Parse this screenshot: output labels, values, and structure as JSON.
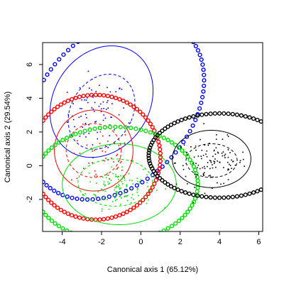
{
  "chart_data": {
    "type": "scatter",
    "title": "",
    "xlabel": "Canonical axis 1 (65.12%)",
    "ylabel": "Canonical axis 2 (29.54%)",
    "xlim": [
      -5,
      6.2
    ],
    "ylim": [
      -3.9,
      7.3
    ],
    "x_ticks": [
      -4,
      -2,
      0,
      2,
      4,
      6
    ],
    "y_ticks": [
      -2,
      0,
      2,
      4,
      6
    ],
    "x_tick_labels": [
      "-4",
      "-2",
      "0",
      "2",
      "4",
      "6"
    ],
    "y_tick_labels": [
      "-2",
      "0",
      "2",
      "4",
      "6"
    ],
    "grid": false,
    "legend": "none",
    "groups": [
      {
        "color": "#0000FF",
        "centroid": [
          -2.2,
          3.1
        ],
        "spread": [
          0.75,
          1.0
        ],
        "n_points": 80,
        "ellipses": [
          {
            "style": "dashed",
            "cx": -2.0,
            "cy": 3.2,
            "rx": 1.6,
            "ry": 2.3,
            "angle": -20
          },
          {
            "style": "solid",
            "cx": -2.0,
            "cy": 3.8,
            "rx": 2.5,
            "ry": 3.4,
            "angle": -20
          },
          {
            "style": "circles",
            "cx": -1.3,
            "cy": 3.4,
            "rx": 4.0,
            "ry": 5.8,
            "angle": -30
          }
        ]
      },
      {
        "color": "#FF0000",
        "centroid": [
          -2.0,
          0.5
        ],
        "spread": [
          0.8,
          0.9
        ],
        "n_points": 50,
        "ellipses": [
          {
            "style": "dashed",
            "cx": -2.4,
            "cy": 0.9,
            "rx": 1.4,
            "ry": 1.6,
            "angle": 0
          },
          {
            "style": "solid",
            "cx": -2.4,
            "cy": 0.9,
            "rx": 2.0,
            "ry": 2.4,
            "angle": 0
          },
          {
            "style": "circles",
            "cx": -2.3,
            "cy": 0.5,
            "rx": 3.3,
            "ry": 3.7,
            "angle": 0
          }
        ]
      },
      {
        "color": "#00DD00",
        "centroid": [
          -1.1,
          -1.2
        ],
        "spread": [
          0.85,
          0.65
        ],
        "n_points": 130,
        "ellipses": [
          {
            "style": "dashed",
            "cx": -1.3,
            "cy": -1.0,
            "rx": 1.9,
            "ry": 1.4,
            "angle": 0
          },
          {
            "style": "solid",
            "cx": -1.1,
            "cy": -1.1,
            "rx": 2.9,
            "ry": 2.4,
            "angle": 0
          },
          {
            "style": "circles",
            "cx": -1.3,
            "cy": -1.1,
            "rx": 4.2,
            "ry": 3.4,
            "angle": 0
          }
        ]
      },
      {
        "color": "#000000",
        "centroid": [
          3.6,
          0.2
        ],
        "spread": [
          0.9,
          0.7
        ],
        "n_points": 110,
        "ellipses": [
          {
            "style": "dashed",
            "cx": 3.6,
            "cy": 0.3,
            "rx": 1.3,
            "ry": 1.0,
            "angle": 0
          },
          {
            "style": "solid",
            "cx": 3.6,
            "cy": 0.4,
            "rx": 2.0,
            "ry": 1.7,
            "angle": 0
          },
          {
            "style": "circles",
            "cx": 4.0,
            "cy": 0.6,
            "rx": 3.6,
            "ry": 2.5,
            "angle": 0
          }
        ]
      }
    ]
  }
}
